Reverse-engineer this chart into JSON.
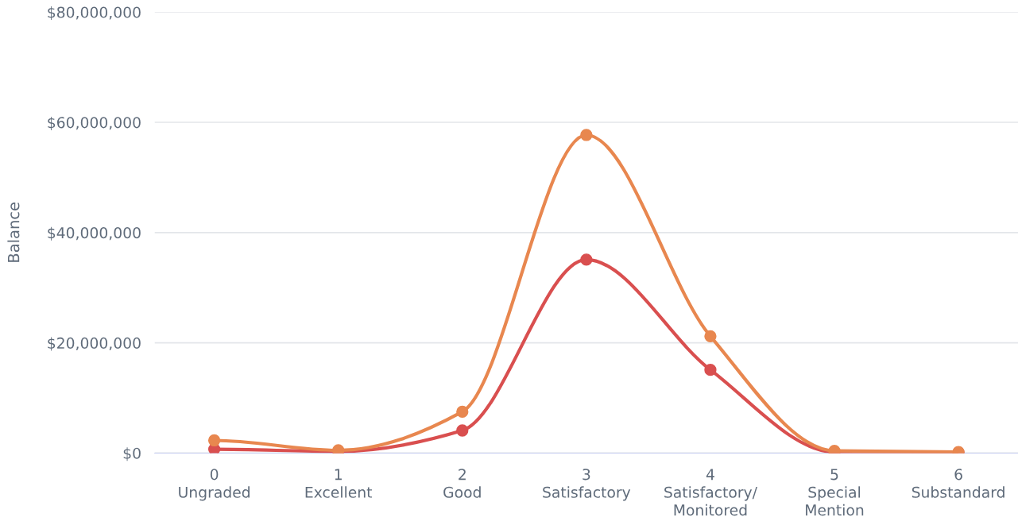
{
  "chart_data": {
    "type": "line",
    "ylabel": "Balance",
    "categories": [
      "0\nUngraded",
      "1\nExcellent",
      "2\nGood",
      "3\nSatisfactory",
      "4\nSatisfactory/\nMonitored",
      "5\nSpecial\nMention",
      "6\nSubstandard"
    ],
    "series": [
      {
        "color": "#d94f4f",
        "values": [
          700000,
          300000,
          4100000,
          35100000,
          15100000,
          200000,
          100000
        ]
      },
      {
        "color": "#e8874f",
        "values": [
          2300000,
          500000,
          7500000,
          57700000,
          21200000,
          400000,
          200000
        ]
      }
    ],
    "ylim": [
      0,
      80000000
    ],
    "yticks": [
      {
        "value": 0,
        "label": "$0"
      },
      {
        "value": 20000000,
        "label": "$20,000,000"
      },
      {
        "value": 40000000,
        "label": "$40,000,000"
      },
      {
        "value": 60000000,
        "label": "$60,000,000"
      },
      {
        "value": 80000000,
        "label": "$80,000,000"
      }
    ],
    "grid": "y",
    "marker": "circle",
    "line_style": "solid",
    "legend": false
  }
}
